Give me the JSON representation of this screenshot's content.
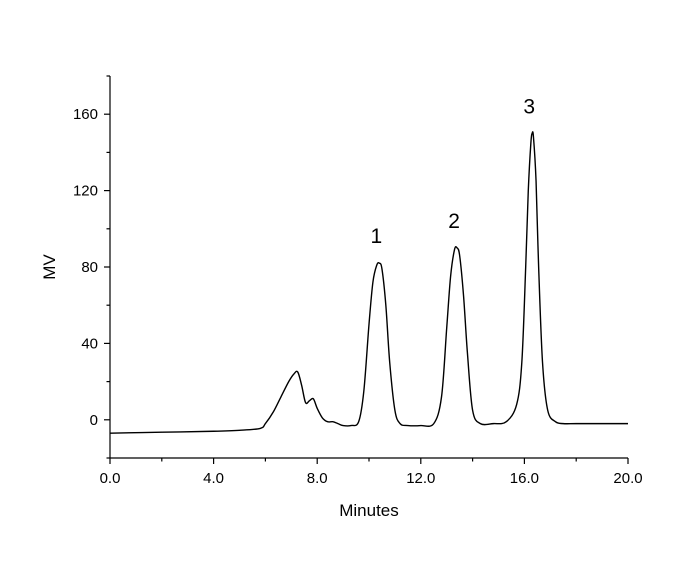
{
  "chart_data": {
    "type": "line",
    "title": "",
    "xlabel": "Minutes",
    "ylabel": "MV",
    "xlim": [
      0,
      20
    ],
    "ylim": [
      -20,
      180
    ],
    "xticks": [
      0,
      4,
      8,
      12,
      16,
      20
    ],
    "xtick_labels": [
      "0.0",
      "4.0",
      "8.0",
      "12.0",
      "16.0",
      "20.0"
    ],
    "yticks": [
      0,
      40,
      80,
      120,
      160
    ],
    "ytick_labels": [
      "0",
      "40",
      "80",
      "120",
      "160"
    ],
    "grid": false,
    "legend": "none",
    "series": [
      {
        "x": [
          0,
          2,
          4,
          5,
          5.8,
          6.0,
          6.3,
          6.6,
          6.9,
          7.1,
          7.25,
          7.4,
          7.55,
          7.7,
          7.85,
          8.0,
          8.2,
          8.4,
          8.6,
          8.8,
          9.0,
          9.3,
          9.6,
          9.8,
          10.0,
          10.15,
          10.3,
          10.4,
          10.5,
          10.65,
          10.8,
          11.0,
          11.2,
          11.5,
          12.0,
          12.5,
          12.8,
          13.0,
          13.15,
          13.3,
          13.4,
          13.5,
          13.65,
          13.8,
          14.0,
          14.3,
          14.8,
          15.3,
          15.7,
          15.9,
          16.05,
          16.15,
          16.25,
          16.3,
          16.35,
          16.45,
          16.55,
          16.7,
          16.9,
          17.2,
          17.5,
          18.0,
          19.0,
          20.0
        ],
        "y": [
          -7,
          -6.5,
          -6,
          -5.5,
          -4.5,
          -2,
          4,
          12,
          20,
          24,
          25,
          18,
          9,
          10,
          11,
          6,
          1,
          -1,
          -1,
          -2,
          -3,
          -3,
          -1,
          15,
          50,
          72,
          81,
          82,
          79,
          60,
          30,
          5,
          -2,
          -3,
          -3,
          -2,
          12,
          48,
          75,
          89,
          90,
          86,
          65,
          35,
          5,
          -2,
          -2,
          -1,
          8,
          30,
          80,
          120,
          145,
          150,
          148,
          125,
          80,
          30,
          5,
          -1,
          -2,
          -2,
          -2,
          -2
        ]
      }
    ],
    "annotations": [
      {
        "text": "1",
        "x": 10.4,
        "y": 82
      },
      {
        "text": "2",
        "x": 13.4,
        "y": 90
      },
      {
        "text": "3",
        "x": 16.3,
        "y": 150
      }
    ]
  }
}
